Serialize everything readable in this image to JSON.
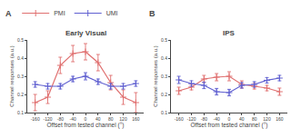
{
  "chart_data": [
    {
      "type": "line",
      "title": "Early Visual",
      "annotations": [
        "A"
      ],
      "xlabel": "Offset from tested channel (°)",
      "ylabel": "Channel responses (a.u.)",
      "x": [
        -160,
        -120,
        -80,
        -40,
        0,
        40,
        80,
        120,
        160
      ],
      "series": [
        {
          "name": "PMI",
          "color": "#E07070",
          "marker": "plus",
          "values": [
            0.155,
            0.185,
            0.36,
            0.425,
            0.435,
            0.375,
            0.265,
            0.185,
            0.155
          ],
          "errors": [
            0.045,
            0.035,
            0.045,
            0.045,
            0.045,
            0.045,
            0.04,
            0.04,
            0.055
          ]
        },
        {
          "name": "UMI",
          "color": "#6060D0",
          "marker": "plus",
          "values": [
            0.255,
            0.245,
            0.245,
            0.285,
            0.3,
            0.27,
            0.245,
            0.245,
            0.26
          ],
          "errors": [
            0.015,
            0.015,
            0.015,
            0.015,
            0.02,
            0.015,
            0.015,
            0.015,
            0.015
          ]
        }
      ],
      "xlim": [
        -185,
        185
      ],
      "ylim": [
        0.1,
        0.5
      ],
      "xticks": [
        -160,
        -120,
        -80,
        -40,
        0,
        40,
        80,
        120,
        160
      ],
      "yticks": [
        0.1,
        0.2,
        0.3,
        0.4,
        0.5
      ],
      "grid": false,
      "legend": "upper left"
    },
    {
      "type": "line",
      "title": "IPS",
      "annotations": [
        "B"
      ],
      "xlabel": "Offset from tested channel (°)",
      "ylabel": "Channel responses (a.u.)",
      "x": [
        -160,
        -120,
        -80,
        -40,
        0,
        40,
        80,
        120,
        160
      ],
      "series": [
        {
          "name": "PMI",
          "color": "#E07070",
          "marker": "plus",
          "values": [
            0.22,
            0.24,
            0.285,
            0.295,
            0.3,
            0.255,
            0.245,
            0.235,
            0.215
          ],
          "errors": [
            0.02,
            0.015,
            0.02,
            0.02,
            0.025,
            0.02,
            0.015,
            0.015,
            0.02
          ]
        },
        {
          "name": "UMI",
          "color": "#6060D0",
          "marker": "plus",
          "values": [
            0.28,
            0.26,
            0.25,
            0.215,
            0.21,
            0.25,
            0.255,
            0.278,
            0.29
          ],
          "errors": [
            0.02,
            0.015,
            0.018,
            0.018,
            0.018,
            0.015,
            0.015,
            0.015,
            0.015
          ]
        }
      ],
      "xlim": [
        -185,
        185
      ],
      "ylim": [
        0.1,
        0.5
      ],
      "xticks": [
        -160,
        -120,
        -80,
        -40,
        0,
        40,
        80,
        120,
        160
      ],
      "yticks": [
        0.1,
        0.2,
        0.3,
        0.4,
        0.5
      ],
      "grid": false
    }
  ]
}
